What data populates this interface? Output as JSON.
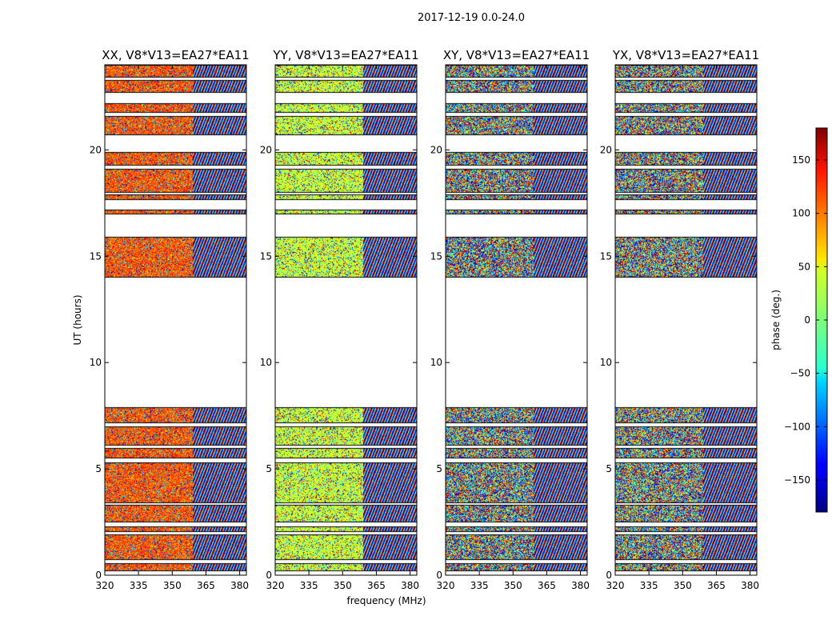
{
  "figure": {
    "suptitle": "2017-12-19 0.0-24.0",
    "xlabel": "frequency (MHz)",
    "ylabel": "UT (hours)"
  },
  "chart_data": {
    "type": "heatmap",
    "colormap": "jet",
    "x_range": [
      320,
      383
    ],
    "y_range": [
      0,
      24
    ],
    "x_ticks": [
      320,
      335,
      350,
      365,
      380
    ],
    "x_tick_labels": [
      "320",
      "335",
      "350",
      "365",
      "380"
    ],
    "y_ticks": [
      0,
      5,
      10,
      15,
      20
    ],
    "y_tick_labels": [
      "0",
      "5",
      "10",
      "15",
      "20"
    ],
    "panels": [
      {
        "title": "XX, V8*V13=EA27*EA11",
        "dominant_phase": 105,
        "phase_coherence": 0.7
      },
      {
        "title": "YY, V8*V13=EA27*EA11",
        "dominant_phase": 25,
        "phase_coherence": 0.7
      },
      {
        "title": "XY, V8*V13=EA27*EA11",
        "dominant_phase": 0,
        "phase_coherence": 0
      },
      {
        "title": "YX, V8*V13=EA27*EA11",
        "dominant_phase": 0,
        "phase_coherence": 0
      }
    ],
    "data_rows_hours": [
      [
        0.2,
        0.55
      ],
      [
        0.7,
        1.9
      ],
      [
        2.05,
        2.3
      ],
      [
        2.5,
        3.3
      ],
      [
        3.4,
        5.3
      ],
      [
        5.5,
        6.0
      ],
      [
        6.1,
        7.0
      ],
      [
        7.15,
        7.9
      ],
      [
        14.0,
        15.9
      ],
      [
        16.95,
        17.2
      ],
      [
        17.65,
        17.9
      ],
      [
        18.0,
        19.1
      ],
      [
        19.25,
        19.9
      ],
      [
        20.7,
        21.6
      ],
      [
        21.75,
        22.2
      ],
      [
        22.7,
        23.3
      ],
      [
        23.4,
        24.0
      ]
    ],
    "colorbar": {
      "label": "phase (deg.)",
      "range": [
        -180,
        180
      ],
      "ticks": [
        -150,
        -100,
        -50,
        0,
        50,
        100,
        150
      ],
      "tick_labels": [
        "−150",
        "−100",
        "−50",
        "0",
        "50",
        "100",
        "150"
      ]
    }
  }
}
